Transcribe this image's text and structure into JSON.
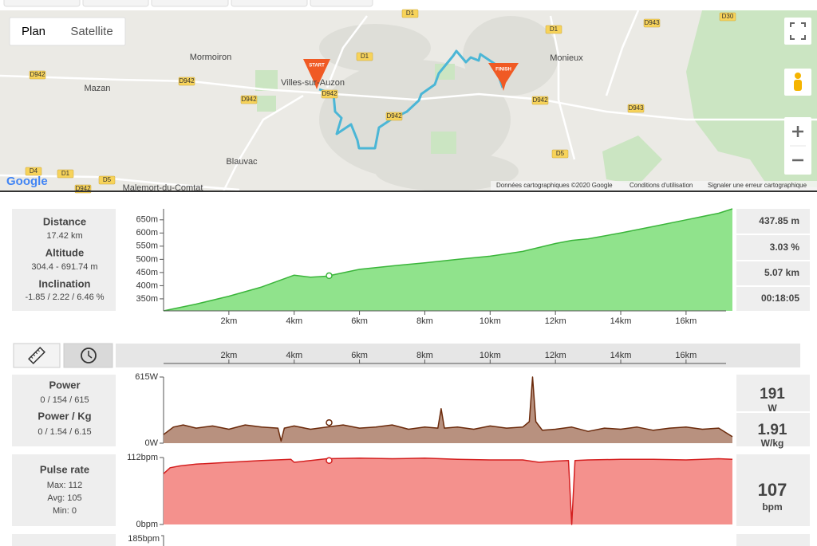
{
  "map": {
    "buttons": [
      "Plan",
      "Satellite"
    ],
    "places": [
      "Mormoiron",
      "Mazan",
      "Villes-sur-Auzon",
      "Monieux",
      "Blauvac",
      "Malemort-du-Comtat"
    ],
    "roads": [
      "D1",
      "D1",
      "D30",
      "D942",
      "D942",
      "D942",
      "D1",
      "D942",
      "D943",
      "D943",
      "D942",
      "D5",
      "D4",
      "D1",
      "D5",
      "D942",
      "D942"
    ],
    "markers": [
      "START",
      "FINISH"
    ],
    "logo": "Google",
    "attribution": [
      "Données cartographiques ©2020 Google",
      "Conditions d'utilisation",
      "Signaler une erreur cartographique"
    ]
  },
  "summary": {
    "distance_label": "Distance",
    "distance": "17.42 km",
    "altitude_label": "Altitude",
    "altitude": "304.4 - 691.74 m",
    "inclination_label": "Inclination",
    "inclination": "-1.85 / 2.22 / 6.46 %"
  },
  "distance_axis": {
    "xlim": [
      0,
      17.42
    ],
    "xticks": [
      {
        "value": 2,
        "label": "2km"
      },
      {
        "value": 4,
        "label": "4km"
      },
      {
        "value": 6,
        "label": "6km"
      },
      {
        "value": 8,
        "label": "8km"
      },
      {
        "value": 10,
        "label": "10km"
      },
      {
        "value": 12,
        "label": "12km"
      },
      {
        "value": 14,
        "label": "14km"
      },
      {
        "value": 16,
        "label": "16km"
      }
    ]
  },
  "elevation": {
    "type": "area",
    "fill": "#90e38c",
    "stroke": "#3bb53b",
    "x": [
      0,
      1,
      2,
      3,
      4,
      4.5,
      5,
      6,
      7,
      8,
      9,
      10,
      11,
      12,
      12.5,
      13,
      14,
      15,
      16,
      17,
      17.42
    ],
    "values": [
      304.4,
      330,
      360,
      395,
      440,
      432,
      436,
      462,
      475,
      487,
      500,
      512,
      530,
      560,
      572,
      578,
      600,
      625,
      650,
      675,
      691.74
    ],
    "ylim": [
      304.4,
      691.74
    ],
    "yticks": [
      {
        "value": 350,
        "label": "350m"
      },
      {
        "value": 400,
        "label": "400m"
      },
      {
        "value": 450,
        "label": "450m"
      },
      {
        "value": 500,
        "label": "500m"
      },
      {
        "value": 550,
        "label": "550m"
      },
      {
        "value": 600,
        "label": "600m"
      },
      {
        "value": 650,
        "label": "650m"
      }
    ],
    "cursor": {
      "x": 5.07,
      "x_label": "5.07 km",
      "value": 437.85,
      "value_label": "437.85 m",
      "grade": "3.03 %",
      "time": "00:18:05"
    }
  },
  "power": {
    "type": "area",
    "fill": "#b8917f",
    "stroke": "#6b2a0b",
    "title": "Power",
    "stats": "0 / 154 / 615",
    "title2": "Power / Kg",
    "stats2": "0 / 1.54 / 6.15",
    "x": [
      0,
      0.3,
      0.6,
      1,
      1.5,
      2,
      2.5,
      3,
      3.5,
      3.6,
      3.7,
      4,
      4.5,
      5,
      5.5,
      6,
      6.5,
      7,
      7.5,
      8,
      8.4,
      8.5,
      8.6,
      9,
      9.5,
      10,
      10.5,
      11,
      11.2,
      11.3,
      11.4,
      11.6,
      12,
      12.5,
      13,
      13.5,
      14,
      14.5,
      15,
      15.5,
      16,
      16.5,
      17,
      17.42
    ],
    "values": [
      80,
      150,
      170,
      140,
      160,
      130,
      170,
      150,
      140,
      20,
      140,
      160,
      130,
      150,
      170,
      140,
      150,
      170,
      130,
      150,
      140,
      320,
      140,
      150,
      130,
      160,
      140,
      150,
      200,
      615,
      200,
      120,
      130,
      150,
      110,
      140,
      130,
      150,
      120,
      140,
      150,
      130,
      140,
      60
    ],
    "ylim": [
      0,
      615
    ],
    "yticks": [
      {
        "value": 0,
        "label": "0W"
      },
      {
        "value": 615,
        "label": "615W"
      }
    ],
    "cursor": {
      "x": 5.07,
      "value": 191,
      "unit": "W",
      "value2": 1.91,
      "unit2": "W/kg"
    }
  },
  "pulse": {
    "type": "area",
    "fill": "#f4918d",
    "stroke": "#d41f1f",
    "title": "Pulse rate",
    "stats": [
      "Max: 112",
      "Avg: 105",
      "Min: 0"
    ],
    "x": [
      0,
      0.2,
      0.5,
      1,
      2,
      3,
      3.9,
      4,
      4.5,
      5,
      6,
      7,
      8,
      9,
      10,
      11,
      11.5,
      12,
      12.4,
      12.5,
      12.6,
      13,
      14,
      15,
      16,
      17,
      17.42
    ],
    "values": [
      85,
      95,
      98,
      101,
      104,
      107,
      109,
      104,
      107,
      110,
      111,
      110,
      111,
      109,
      108,
      108,
      104,
      106,
      107,
      0,
      107,
      108,
      109,
      109,
      108,
      110,
      109
    ],
    "ylim": [
      0,
      112
    ],
    "yticks": [
      {
        "value": 0,
        "label": "0bpm"
      },
      {
        "value": 112,
        "label": "112bpm"
      }
    ],
    "cursor": {
      "x": 5.07,
      "value": 107,
      "unit": "bpm"
    }
  },
  "next_chart": {
    "ytick_label": "185bpm"
  }
}
